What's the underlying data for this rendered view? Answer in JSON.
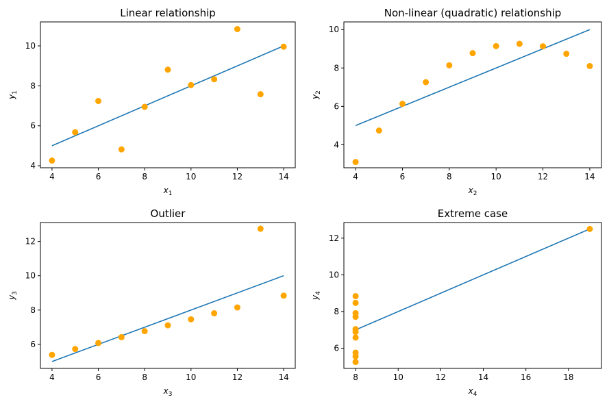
{
  "figure_background": "#ffffff",
  "colors": {
    "points": "#ffa500",
    "fit_line": "#1f77b4",
    "axes": "#000000"
  },
  "chart_data": [
    {
      "type": "scatter",
      "title": "Linear relationship",
      "xlabel": {
        "base": "x",
        "sub": "1"
      },
      "ylabel": {
        "base": "y",
        "sub": "1"
      },
      "xlim": [
        3.5,
        14.5
      ],
      "ylim": [
        3.9,
        11.2
      ],
      "xticks": [
        4,
        6,
        8,
        10,
        12,
        14
      ],
      "yticks": [
        4,
        6,
        8,
        10
      ],
      "grid": false,
      "x": [
        10,
        8,
        13,
        9,
        11,
        14,
        6,
        4,
        12,
        7,
        5
      ],
      "y": [
        8.04,
        6.95,
        7.58,
        8.81,
        8.33,
        9.96,
        7.24,
        4.26,
        10.84,
        4.82,
        5.68
      ],
      "fit_line": {
        "x": [
          4,
          14
        ],
        "y": [
          5,
          10
        ]
      }
    },
    {
      "type": "scatter",
      "title": "Non-linear (quadratic) relationship",
      "xlabel": {
        "base": "x",
        "sub": "2"
      },
      "ylabel": {
        "base": "y",
        "sub": "2"
      },
      "xlim": [
        3.5,
        14.5
      ],
      "ylim": [
        2.8,
        10.4
      ],
      "xticks": [
        4,
        6,
        8,
        10,
        12,
        14
      ],
      "yticks": [
        4,
        6,
        8,
        10
      ],
      "grid": false,
      "x": [
        10,
        8,
        13,
        9,
        11,
        14,
        6,
        4,
        12,
        7,
        5
      ],
      "y": [
        9.14,
        8.14,
        8.74,
        8.77,
        9.26,
        8.1,
        6.13,
        3.1,
        9.13,
        7.26,
        4.74
      ],
      "fit_line": {
        "x": [
          4,
          14
        ],
        "y": [
          5,
          10
        ]
      }
    },
    {
      "type": "scatter",
      "title": "Outlier",
      "xlabel": {
        "base": "x",
        "sub": "3"
      },
      "ylabel": {
        "base": "y",
        "sub": "3"
      },
      "xlim": [
        3.5,
        14.5
      ],
      "ylim": [
        4.6,
        13.1
      ],
      "xticks": [
        4,
        6,
        8,
        10,
        12,
        14
      ],
      "yticks": [
        6,
        8,
        10,
        12
      ],
      "grid": false,
      "x": [
        10,
        8,
        13,
        9,
        11,
        14,
        6,
        4,
        12,
        7,
        5
      ],
      "y": [
        7.46,
        6.77,
        12.74,
        7.11,
        7.81,
        8.84,
        6.08,
        5.39,
        8.15,
        6.42,
        5.73
      ],
      "fit_line": {
        "x": [
          4,
          14
        ],
        "y": [
          5,
          10
        ]
      }
    },
    {
      "type": "scatter",
      "title": "Extreme case",
      "xlabel": {
        "base": "x",
        "sub": "4"
      },
      "ylabel": {
        "base": "y",
        "sub": "4"
      },
      "xlim": [
        7.45,
        19.55
      ],
      "ylim": [
        4.9,
        12.85
      ],
      "xticks": [
        8,
        10,
        12,
        14,
        16,
        18
      ],
      "yticks": [
        6,
        8,
        10,
        12
      ],
      "grid": false,
      "x": [
        8,
        8,
        8,
        8,
        8,
        8,
        8,
        19,
        8,
        8,
        8
      ],
      "y": [
        6.58,
        5.76,
        7.71,
        8.84,
        8.47,
        7.04,
        5.25,
        12.5,
        5.56,
        7.91,
        6.89
      ],
      "fit_line": {
        "x": [
          8,
          19
        ],
        "y": [
          7,
          12.5
        ]
      }
    }
  ]
}
